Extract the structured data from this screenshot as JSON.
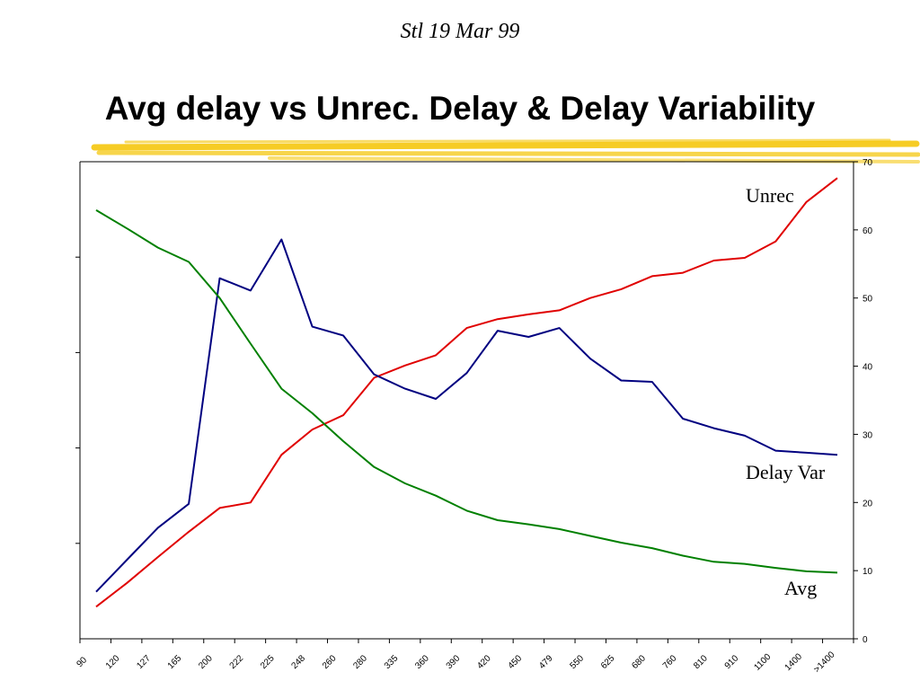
{
  "header": {
    "subtitle": "Stl  19 Mar 99",
    "title": "Avg delay vs Unrec. Delay & Delay Variability"
  },
  "colors": {
    "underline": "#f5c400",
    "avg": "#008000",
    "unrec": "#e00000",
    "delay_var": "#000080",
    "axis": "#000000"
  },
  "chart_data": {
    "type": "line",
    "title": "",
    "xlabel": "",
    "ylabel": "",
    "categories": [
      "90",
      "120",
      "127",
      "165",
      "200",
      "222",
      "225",
      "248",
      "260",
      "280",
      "335",
      "360",
      "390",
      "420",
      "450",
      "479",
      "550",
      "625",
      "680",
      "760",
      "810",
      "910",
      "1100",
      "1400",
      ">1400"
    ],
    "ylim": [
      0,
      70
    ],
    "y_ticks": [
      0,
      10,
      20,
      30,
      40,
      50,
      60,
      70
    ],
    "y_axis_side": "right",
    "grid": false,
    "series": [
      {
        "name": "Unrec",
        "color": "#e00000",
        "values": [
          4.7,
          8.2,
          12.0,
          15.7,
          19.2,
          20.0,
          27.0,
          30.7,
          32.8,
          38.3,
          40.1,
          41.6,
          45.6,
          46.9,
          47.6,
          48.2,
          50.0,
          51.3,
          53.2,
          53.7,
          55.5,
          55.9,
          58.3,
          64.1,
          67.6
        ]
      },
      {
        "name": "Delay Var",
        "color": "#000080",
        "values": [
          6.9,
          11.6,
          16.3,
          19.8,
          52.9,
          51.1,
          58.6,
          45.8,
          44.5,
          38.8,
          36.7,
          35.2,
          39.0,
          45.2,
          44.3,
          45.6,
          41.1,
          37.9,
          37.7,
          32.3,
          30.9,
          29.8,
          27.6,
          27.3,
          27.0
        ]
      },
      {
        "name": "Avg",
        "color": "#008000",
        "values": [
          62.9,
          60.2,
          57.4,
          55.3,
          50.0,
          43.3,
          36.7,
          33.1,
          29.0,
          25.2,
          22.8,
          21.0,
          18.8,
          17.4,
          16.8,
          16.1,
          15.1,
          14.1,
          13.3,
          12.2,
          11.3,
          11.0,
          10.4,
          9.9,
          9.7
        ]
      }
    ]
  }
}
